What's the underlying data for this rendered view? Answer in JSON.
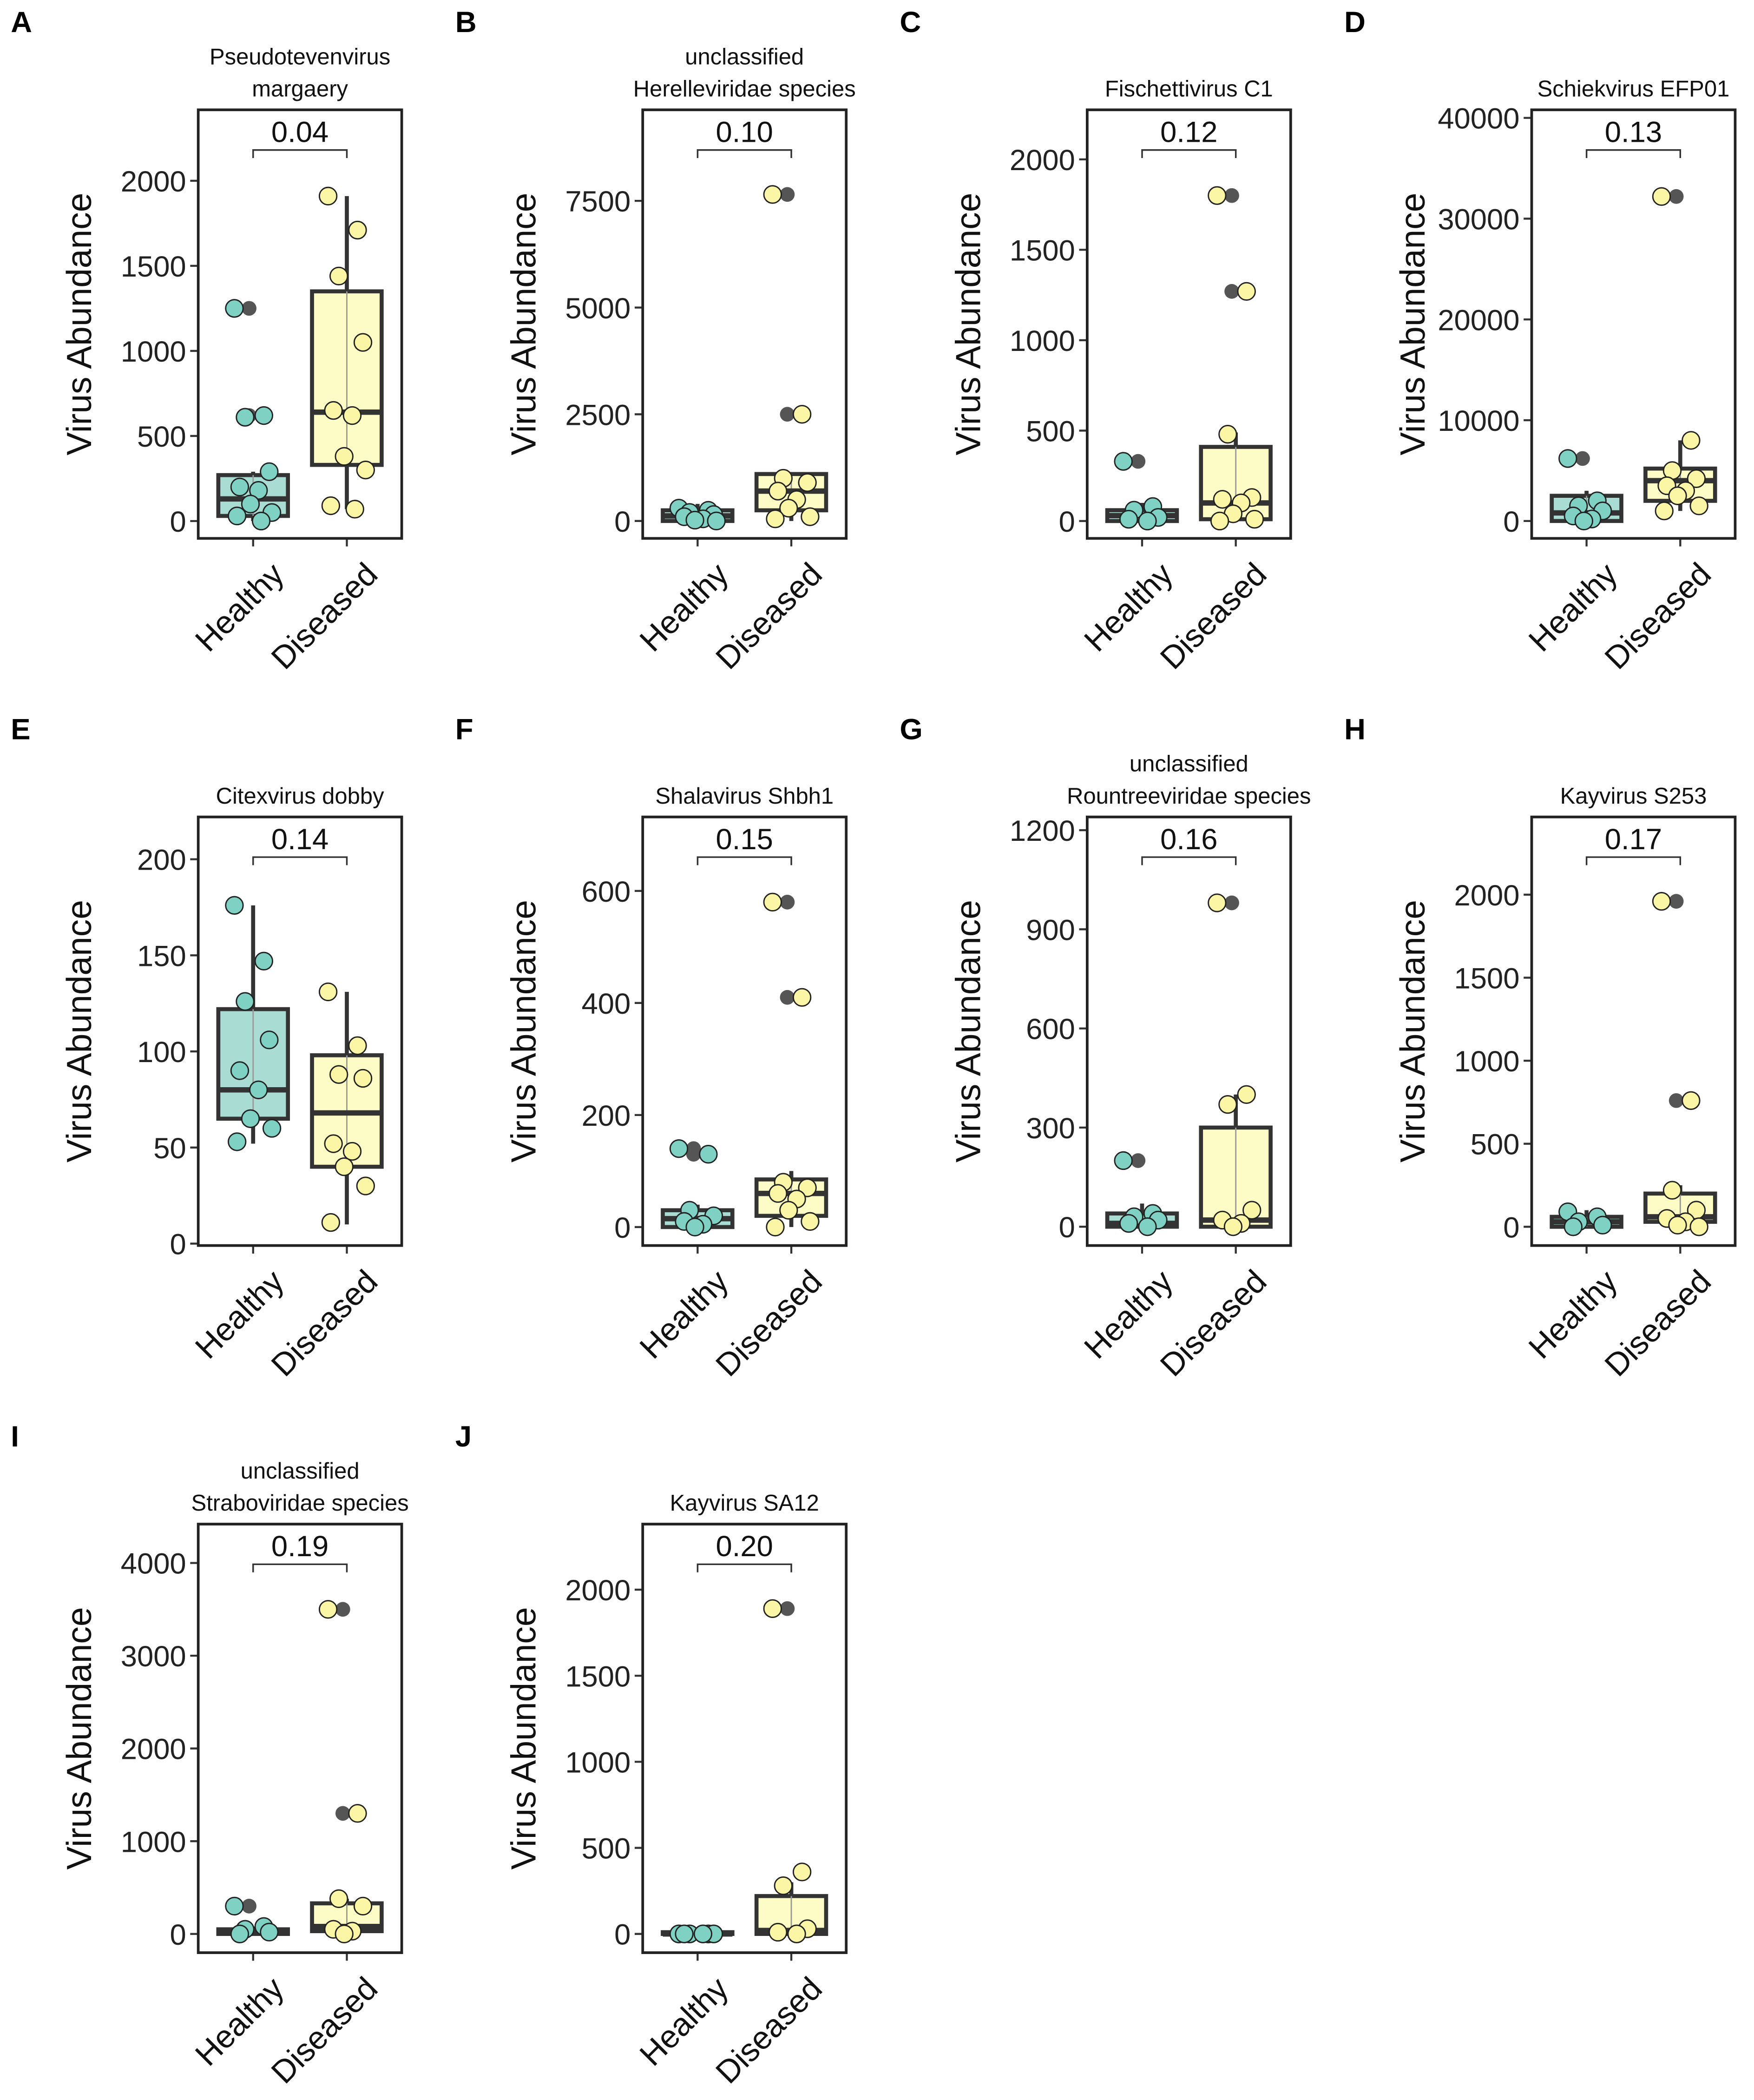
{
  "colors": {
    "healthy_box": "#a9ddd4",
    "healthy_point": "#7fd1c3",
    "diseased_box": "#fdfcc6",
    "diseased_point": "#fbf6a6",
    "outlier": "#555555",
    "line": "#333333"
  },
  "chart_data": [
    {
      "type": "box",
      "panel": "A",
      "title": [
        "Pseudotevenvirus",
        "margaery"
      ],
      "ylabel": "Virus Abundance",
      "categories": [
        "Healthy",
        "Diseased"
      ],
      "p_value": "0.04",
      "yticks": [
        "0",
        "500",
        "1000",
        "1500",
        "2000"
      ],
      "ytick_values": [
        0,
        500,
        1000,
        1500,
        2000
      ],
      "ylim": [
        -102,
        2417
      ],
      "groups": [
        {
          "name": "Healthy",
          "q1": 30,
          "median": 130,
          "q3": 270,
          "whisker_low": 0,
          "whisker_high": 290,
          "outliers": [
            1250,
            620
          ],
          "points": [
            1250,
            620,
            610,
            290,
            200,
            180,
            100,
            50,
            30,
            0
          ]
        },
        {
          "name": "Diseased",
          "q1": 330,
          "median": 640,
          "q3": 1350,
          "whisker_low": 70,
          "whisker_high": 1910,
          "outliers": [],
          "points": [
            1910,
            1710,
            1440,
            1050,
            650,
            620,
            380,
            300,
            90,
            70
          ]
        }
      ]
    },
    {
      "type": "box",
      "panel": "B",
      "title": [
        "unclassified",
        "Herelleviridae species"
      ],
      "ylabel": "Virus Abundance",
      "categories": [
        "Healthy",
        "Diseased"
      ],
      "p_value": "0.10",
      "yticks": [
        "0",
        "2500",
        "5000",
        "7500"
      ],
      "ytick_values": [
        0,
        2500,
        5000,
        7500
      ],
      "ylim": [
        -408,
        9633
      ],
      "groups": [
        {
          "name": "Healthy",
          "q1": 0,
          "median": 120,
          "q3": 250,
          "whisker_low": 0,
          "whisker_high": 400,
          "outliers": [],
          "points": [
            300,
            250,
            200,
            150,
            100,
            50,
            20,
            0
          ]
        },
        {
          "name": "Diseased",
          "q1": 250,
          "median": 700,
          "q3": 1100,
          "whisker_low": 0,
          "whisker_high": 1100,
          "outliers": [
            7650,
            2500
          ],
          "points": [
            7650,
            2500,
            1000,
            900,
            700,
            500,
            300,
            100,
            50
          ]
        }
      ]
    },
    {
      "type": "box",
      "panel": "C",
      "title": [
        "Fischettivirus C1"
      ],
      "ylabel": "Virus Abundance",
      "categories": [
        "Healthy",
        "Diseased"
      ],
      "p_value": "0.12",
      "yticks": [
        "0",
        "500",
        "1000",
        "1500",
        "2000"
      ],
      "ytick_values": [
        0,
        500,
        1000,
        1500,
        2000
      ],
      "ylim": [
        -96,
        2274
      ],
      "groups": [
        {
          "name": "Healthy",
          "q1": 0,
          "median": 30,
          "q3": 60,
          "whisker_low": 0,
          "whisker_high": 100,
          "outliers": [
            330
          ],
          "points": [
            330,
            80,
            60,
            20,
            10,
            0
          ]
        },
        {
          "name": "Diseased",
          "q1": 10,
          "median": 100,
          "q3": 410,
          "whisker_low": 0,
          "whisker_high": 490,
          "outliers": [
            1800,
            1270
          ],
          "points": [
            1800,
            1270,
            480,
            130,
            120,
            100,
            40,
            10,
            0
          ]
        }
      ]
    },
    {
      "type": "box",
      "panel": "D",
      "title": [
        "Schiekvirus EFP01"
      ],
      "ylabel": "Virus Abundance",
      "categories": [
        "Healthy",
        "Diseased"
      ],
      "p_value": "0.13",
      "yticks": [
        "0",
        "10000",
        "20000",
        "30000",
        "40000"
      ],
      "ytick_values": [
        0,
        10000,
        20000,
        30000,
        40000
      ],
      "ylim": [
        -1727,
        40800
      ],
      "groups": [
        {
          "name": "Healthy",
          "q1": 0,
          "median": 800,
          "q3": 2500,
          "whisker_low": 0,
          "whisker_high": 3000,
          "outliers": [
            6200
          ],
          "points": [
            6200,
            2000,
            1500,
            1000,
            500,
            200,
            0
          ]
        },
        {
          "name": "Diseased",
          "q1": 2000,
          "median": 4000,
          "q3": 5200,
          "whisker_low": 1000,
          "whisker_high": 8000,
          "outliers": [
            32200
          ],
          "points": [
            32200,
            8000,
            5000,
            4200,
            3500,
            3000,
            2500,
            1500,
            1000
          ]
        }
      ]
    },
    {
      "type": "box",
      "panel": "E",
      "title": [
        "Citexvirus dobby"
      ],
      "ylabel": "Virus Abundance",
      "categories": [
        "Healthy",
        "Diseased"
      ],
      "p_value": "0.14",
      "yticks": [
        "0",
        "50",
        "100",
        "150",
        "200"
      ],
      "ytick_values": [
        0,
        50,
        100,
        150,
        200
      ],
      "ylim": [
        -1,
        222
      ],
      "groups": [
        {
          "name": "Healthy",
          "q1": 65,
          "median": 80,
          "q3": 122,
          "whisker_low": 52,
          "whisker_high": 176,
          "outliers": [],
          "points": [
            176,
            147,
            126,
            106,
            90,
            80,
            65,
            60,
            53
          ]
        },
        {
          "name": "Diseased",
          "q1": 40,
          "median": 68,
          "q3": 98,
          "whisker_low": 10,
          "whisker_high": 131,
          "outliers": [],
          "points": [
            131,
            103,
            88,
            86,
            52,
            48,
            40,
            30,
            11
          ]
        }
      ]
    },
    {
      "type": "box",
      "panel": "F",
      "title": [
        "Shalavirus Shbh1"
      ],
      "ylabel": "Virus Abundance",
      "categories": [
        "Healthy",
        "Diseased"
      ],
      "p_value": "0.15",
      "yticks": [
        "0",
        "200",
        "400",
        "600"
      ],
      "ytick_values": [
        0,
        200,
        400,
        600
      ],
      "ylim": [
        -33,
        732
      ],
      "groups": [
        {
          "name": "Healthy",
          "q1": 0,
          "median": 15,
          "q3": 30,
          "whisker_low": 0,
          "whisker_high": 40,
          "outliers": [
            140,
            130
          ],
          "points": [
            140,
            130,
            30,
            20,
            10,
            5,
            0
          ]
        },
        {
          "name": "Diseased",
          "q1": 20,
          "median": 60,
          "q3": 85,
          "whisker_low": 0,
          "whisker_high": 100,
          "outliers": [
            580,
            410
          ],
          "points": [
            580,
            410,
            80,
            70,
            60,
            50,
            30,
            10,
            0
          ]
        }
      ]
    },
    {
      "type": "box",
      "panel": "G",
      "title": [
        "unclassified",
        "Rountreeviridae species"
      ],
      "ylabel": "Virus Abundance",
      "categories": [
        "Healthy",
        "Diseased"
      ],
      "p_value": "0.16",
      "yticks": [
        "0",
        "300",
        "600",
        "900",
        "1200"
      ],
      "ytick_values": [
        0,
        300,
        600,
        900,
        1200
      ],
      "ylim": [
        -57,
        1240
      ],
      "groups": [
        {
          "name": "Healthy",
          "q1": 0,
          "median": 10,
          "q3": 40,
          "whisker_low": 0,
          "whisker_high": 70,
          "outliers": [
            200
          ],
          "points": [
            200,
            40,
            30,
            20,
            10,
            0
          ]
        },
        {
          "name": "Diseased",
          "q1": 0,
          "median": 20,
          "q3": 300,
          "whisker_low": 0,
          "whisker_high": 400,
          "outliers": [
            980
          ],
          "points": [
            980,
            400,
            370,
            50,
            20,
            10,
            0
          ]
        }
      ]
    },
    {
      "type": "box",
      "panel": "H",
      "title": [
        "Kayvirus S253"
      ],
      "ylabel": "Virus Abundance",
      "categories": [
        "Healthy",
        "Diseased"
      ],
      "p_value": "0.17",
      "yticks": [
        "0",
        "500",
        "1000",
        "1500",
        "2000"
      ],
      "ytick_values": [
        0,
        500,
        1000,
        1500,
        2000
      ],
      "ylim": [
        -113,
        2468
      ],
      "groups": [
        {
          "name": "Healthy",
          "q1": 0,
          "median": 30,
          "q3": 60,
          "whisker_low": 0,
          "whisker_high": 100,
          "outliers": [],
          "points": [
            90,
            60,
            30,
            10,
            0
          ]
        },
        {
          "name": "Diseased",
          "q1": 30,
          "median": 60,
          "q3": 200,
          "whisker_low": 0,
          "whisker_high": 250,
          "outliers": [
            1960,
            760
          ],
          "points": [
            1960,
            760,
            220,
            100,
            50,
            30,
            10,
            0
          ]
        }
      ]
    },
    {
      "type": "box",
      "panel": "I",
      "title": [
        "unclassified",
        "Straboviridae species"
      ],
      "ylabel": "Virus Abundance",
      "categories": [
        "Healthy",
        "Diseased"
      ],
      "p_value": "0.19",
      "yticks": [
        "0",
        "1000",
        "2000",
        "3000",
        "4000"
      ],
      "ytick_values": [
        0,
        1000,
        2000,
        3000,
        4000
      ],
      "ylim": [
        -202,
        4419
      ],
      "groups": [
        {
          "name": "Healthy",
          "q1": 0,
          "median": 20,
          "q3": 50,
          "whisker_low": 0,
          "whisker_high": 80,
          "outliers": [
            300
          ],
          "points": [
            300,
            80,
            50,
            20,
            0
          ]
        },
        {
          "name": "Diseased",
          "q1": 30,
          "median": 80,
          "q3": 330,
          "whisker_low": 0,
          "whisker_high": 380,
          "outliers": [
            3500,
            1300
          ],
          "points": [
            3500,
            1300,
            380,
            300,
            50,
            30,
            0
          ]
        }
      ]
    },
    {
      "type": "box",
      "panel": "J",
      "title": [
        "Kayvirus SA12"
      ],
      "ylabel": "Virus Abundance",
      "categories": [
        "Healthy",
        "Diseased"
      ],
      "p_value": "0.20",
      "yticks": [
        "0",
        "500",
        "1000",
        "1500",
        "2000"
      ],
      "ytick_values": [
        0,
        500,
        1000,
        1500,
        2000
      ],
      "ylim": [
        -109,
        2381
      ],
      "groups": [
        {
          "name": "Healthy",
          "q1": 0,
          "median": 0,
          "q3": 10,
          "whisker_low": 0,
          "whisker_high": 10,
          "outliers": [],
          "points": [
            0,
            0,
            0,
            0,
            0,
            0
          ]
        },
        {
          "name": "Diseased",
          "q1": 0,
          "median": 20,
          "q3": 220,
          "whisker_low": 0,
          "whisker_high": 300,
          "outliers": [
            1890
          ],
          "points": [
            1890,
            360,
            280,
            30,
            10,
            0
          ]
        }
      ]
    }
  ]
}
